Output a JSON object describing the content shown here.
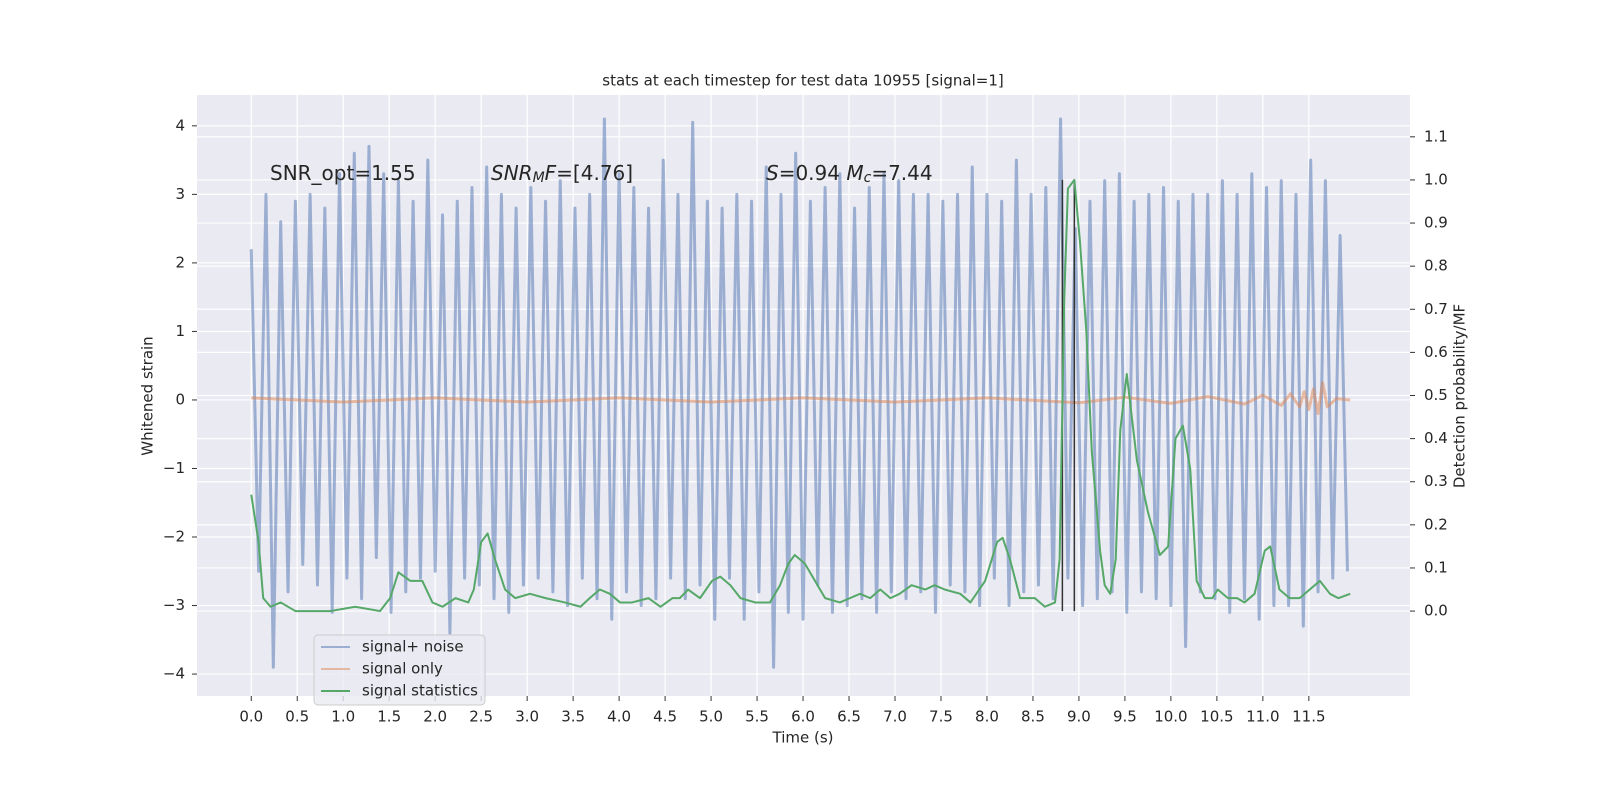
{
  "chart_data": {
    "type": "line",
    "title": "stats at each timestep for test data 10955 [signal=1]",
    "xlabel": "Time (s)",
    "ylabel": "Whitened strain",
    "y2label": "Detection probability/MF",
    "background": "#eaeaf2",
    "grid": true,
    "legend": "lower left",
    "xlim": [
      -0.59,
      12.6
    ],
    "ylim": [
      -4.32,
      4.45
    ],
    "y2lim": [
      -0.197,
      1.197
    ],
    "xticks": [
      {
        "value": 0,
        "label": "0.0"
      },
      0.5,
      {
        "value": 1,
        "label": "1.0"
      },
      1.5,
      {
        "value": 2,
        "label": "2.0"
      },
      2.5,
      {
        "value": 3,
        "label": "3.0"
      },
      3.5,
      {
        "value": 4,
        "label": "4.0"
      },
      4.5,
      {
        "value": 5,
        "label": "5.0"
      },
      5.5,
      {
        "value": 6,
        "label": "6.0"
      },
      6.5,
      {
        "value": 7,
        "label": "7.0"
      },
      7.5,
      {
        "value": 8,
        "label": "8.0"
      },
      8.5,
      {
        "value": 9,
        "label": "9.0"
      },
      9.5,
      {
        "value": 10,
        "label": "10.0"
      },
      10.5,
      {
        "value": 11,
        "label": "11.0"
      },
      11.5
    ],
    "yticks": [
      {
        "value": -4,
        "label": "−4"
      },
      {
        "value": -3,
        "label": "−3"
      },
      {
        "value": -2,
        "label": "−2"
      },
      {
        "value": -1,
        "label": "−1"
      },
      0,
      1,
      2,
      3,
      4
    ],
    "y2ticks": [
      {
        "value": 0,
        "label": "0.0"
      },
      0.1,
      0.2,
      0.3,
      0.4,
      0.5,
      0.6,
      0.7,
      0.8,
      0.9,
      {
        "value": 1,
        "label": "1.0"
      },
      1.1
    ],
    "annotations": [
      [
        {
          "text": "SNR_opt=1.55"
        }
      ],
      [
        {
          "text": "SNR",
          "italic": true
        },
        {
          "text": "M",
          "italic": true,
          "sub": true
        },
        {
          "text": "F",
          "italic": true
        },
        {
          "text": "=[4.76]"
        }
      ],
      [
        {
          "text": "S",
          "italic": true
        },
        {
          "text": "=0.94   "
        },
        {
          "text": "M",
          "italic": true
        },
        {
          "text": "c",
          "italic": true,
          "sub": true
        },
        {
          "text": "=7.44"
        }
      ]
    ],
    "vlines": {
      "x": [
        8.82,
        8.95
      ],
      "y2": [
        0,
        1
      ],
      "color": "#333333"
    },
    "series": [
      {
        "name": "signal+ noise",
        "color": "#4c72b0",
        "alpha": 0.5,
        "x": [
          0,
          0.08,
          0.16,
          0.24,
          0.32,
          0.4,
          0.48,
          0.56,
          0.64,
          0.72,
          0.8,
          0.88,
          0.96,
          1.04,
          1.12,
          1.2,
          1.28,
          1.36,
          1.44,
          1.52,
          1.6,
          1.68,
          1.76,
          1.84,
          1.92,
          2,
          2.08,
          2.16,
          2.24,
          2.32,
          2.4,
          2.48,
          2.56,
          2.64,
          2.72,
          2.8,
          2.88,
          2.96,
          3.04,
          3.12,
          3.2,
          3.28,
          3.36,
          3.44,
          3.52,
          3.6,
          3.68,
          3.76,
          3.84,
          3.92,
          4,
          4.08,
          4.16,
          4.24,
          4.32,
          4.4,
          4.48,
          4.56,
          4.64,
          4.72,
          4.8,
          4.88,
          4.96,
          5.04,
          5.12,
          5.2,
          5.28,
          5.36,
          5.44,
          5.52,
          5.6,
          5.68,
          5.76,
          5.84,
          5.92,
          6,
          6.08,
          6.16,
          6.24,
          6.32,
          6.4,
          6.48,
          6.56,
          6.64,
          6.72,
          6.8,
          6.88,
          6.96,
          7.04,
          7.12,
          7.2,
          7.28,
          7.36,
          7.44,
          7.52,
          7.6,
          7.68,
          7.76,
          7.84,
          7.92,
          8,
          8.08,
          8.16,
          8.24,
          8.32,
          8.4,
          8.48,
          8.56,
          8.64,
          8.72,
          8.8,
          8.88,
          8.96,
          9.04,
          9.12,
          9.2,
          9.28,
          9.36,
          9.44,
          9.52,
          9.6,
          9.68,
          9.76,
          9.84,
          9.92,
          10,
          10.08,
          10.16,
          10.24,
          10.32,
          10.4,
          10.48,
          10.56,
          10.64,
          10.72,
          10.8,
          10.88,
          10.96,
          11.04,
          11.12,
          11.2,
          11.28,
          11.36,
          11.44,
          11.52,
          11.6,
          11.68,
          11.76,
          11.84,
          11.92
        ],
        "values": [
          2.2,
          -2.5,
          3.0,
          -3.9,
          2.6,
          -2.8,
          2.9,
          -2.4,
          3.0,
          -2.7,
          2.8,
          -3.1,
          3.3,
          -2.6,
          3.6,
          -2.9,
          3.7,
          -2.3,
          3.3,
          -3.1,
          3.2,
          -2.8,
          2.9,
          -2.6,
          3.5,
          -2.5,
          2.7,
          -3.4,
          2.9,
          -2.6,
          3.1,
          -2.7,
          3.4,
          -2.9,
          3.0,
          -3.1,
          2.8,
          -2.7,
          3.1,
          -2.6,
          2.9,
          -2.8,
          3.2,
          -3.0,
          2.8,
          -2.6,
          3.0,
          -2.9,
          4.1,
          -3.2,
          3.3,
          -2.8,
          3.1,
          -3.0,
          2.8,
          -2.9,
          3.5,
          -2.6,
          3.0,
          -2.9,
          4.05,
          -2.7,
          2.9,
          -3.2,
          2.8,
          -2.6,
          3.0,
          -3.2,
          2.9,
          -2.8,
          3.4,
          -3.9,
          3.0,
          -3.1,
          3.6,
          -3.2,
          2.9,
          -2.7,
          3.1,
          -3.1,
          3.3,
          -3.0,
          2.8,
          -2.9,
          3.1,
          -3.1,
          3.3,
          -2.8,
          3.2,
          -2.9,
          3.0,
          -2.8,
          3.0,
          -3.1,
          2.9,
          -2.7,
          3.0,
          -2.8,
          3.4,
          -3.0,
          3.0,
          -2.6,
          2.9,
          -3.0,
          3.5,
          -2.8,
          3.0,
          -2.7,
          3.1,
          -2.9,
          4.1,
          -2.6,
          2.5,
          -3.0,
          2.9,
          -2.9,
          3.2,
          -2.8,
          3.3,
          -3.1,
          2.9,
          -2.8,
          3.0,
          -2.9,
          3.1,
          -3.0,
          2.9,
          -3.6,
          3.0,
          -2.8,
          3.0,
          -2.9,
          3.2,
          -3.1,
          3.0,
          -2.9,
          3.3,
          -3.2,
          3.1,
          -3.0,
          3.2,
          -3.0,
          3.0,
          -3.3,
          3.5,
          -2.8,
          3.2,
          -2.6,
          2.4,
          -2.5
        ]
      },
      {
        "name": "signal only",
        "color": "#dd8452",
        "alpha": 0.5,
        "x": [
          0,
          1,
          2,
          3,
          4,
          5,
          6,
          7,
          8,
          9,
          9.5,
          10,
          10.4,
          10.8,
          11.0,
          11.2,
          11.3,
          11.4,
          11.45,
          11.5,
          11.55,
          11.6,
          11.65,
          11.7,
          11.8,
          11.95
        ],
        "values": [
          0.03,
          -0.03,
          0.03,
          -0.03,
          0.03,
          -0.03,
          0.03,
          -0.03,
          0.03,
          -0.04,
          0.04,
          -0.05,
          0.05,
          -0.06,
          0.07,
          -0.08,
          0.09,
          -0.1,
          0.12,
          -0.14,
          0.16,
          -0.2,
          0.25,
          -0.1,
          0.02,
          0
        ]
      },
      {
        "name": "signal statistics",
        "color": "#55a868",
        "alpha": 1,
        "axis": "y2",
        "x": [
          0.0,
          0.08,
          0.13,
          0.21,
          0.32,
          0.48,
          0.86,
          1.13,
          1.4,
          1.51,
          1.6,
          1.73,
          1.86,
          1.97,
          2.08,
          2.22,
          2.36,
          2.42,
          2.5,
          2.57,
          2.65,
          2.76,
          2.87,
          3.03,
          3.2,
          3.41,
          3.58,
          3.68,
          3.79,
          3.9,
          4.01,
          4.14,
          4.32,
          4.45,
          4.58,
          4.66,
          4.75,
          4.88,
          5.01,
          5.1,
          5.21,
          5.32,
          5.48,
          5.64,
          5.75,
          5.84,
          5.91,
          6.02,
          6.13,
          6.24,
          6.4,
          6.51,
          6.62,
          6.73,
          6.84,
          6.95,
          7.05,
          7.18,
          7.33,
          7.43,
          7.54,
          7.71,
          7.82,
          7.98,
          8.11,
          8.17,
          8.25,
          8.36,
          8.52,
          8.63,
          8.74,
          8.79,
          8.84,
          8.88,
          8.95,
          9.01,
          9.08,
          9.14,
          9.23,
          9.28,
          9.34,
          9.4,
          9.45,
          9.52,
          9.63,
          9.75,
          9.88,
          9.97,
          10.05,
          10.13,
          10.21,
          10.28,
          10.37,
          10.45,
          10.51,
          10.62,
          10.72,
          10.8,
          10.91,
          11.02,
          11.08,
          11.18,
          11.29,
          11.4,
          11.51,
          11.62,
          11.73,
          11.82,
          11.95
        ],
        "values": [
          0.27,
          0.16,
          0.03,
          0.01,
          0.02,
          0.0,
          0.0,
          0.01,
          0.0,
          0.03,
          0.09,
          0.07,
          0.07,
          0.02,
          0.01,
          0.03,
          0.02,
          0.05,
          0.16,
          0.18,
          0.12,
          0.05,
          0.03,
          0.04,
          0.03,
          0.02,
          0.01,
          0.03,
          0.05,
          0.04,
          0.02,
          0.02,
          0.03,
          0.01,
          0.03,
          0.03,
          0.05,
          0.03,
          0.07,
          0.08,
          0.06,
          0.03,
          0.02,
          0.02,
          0.06,
          0.11,
          0.13,
          0.11,
          0.07,
          0.03,
          0.02,
          0.03,
          0.04,
          0.03,
          0.05,
          0.03,
          0.04,
          0.06,
          0.05,
          0.06,
          0.05,
          0.04,
          0.02,
          0.07,
          0.16,
          0.17,
          0.12,
          0.03,
          0.03,
          0.01,
          0.02,
          0.12,
          0.72,
          0.98,
          1.0,
          0.86,
          0.65,
          0.37,
          0.14,
          0.06,
          0.04,
          0.12,
          0.42,
          0.55,
          0.35,
          0.23,
          0.13,
          0.15,
          0.4,
          0.43,
          0.33,
          0.07,
          0.03,
          0.03,
          0.05,
          0.03,
          0.03,
          0.02,
          0.04,
          0.14,
          0.15,
          0.05,
          0.03,
          0.03,
          0.05,
          0.07,
          0.04,
          0.03,
          0.04
        ]
      }
    ]
  }
}
